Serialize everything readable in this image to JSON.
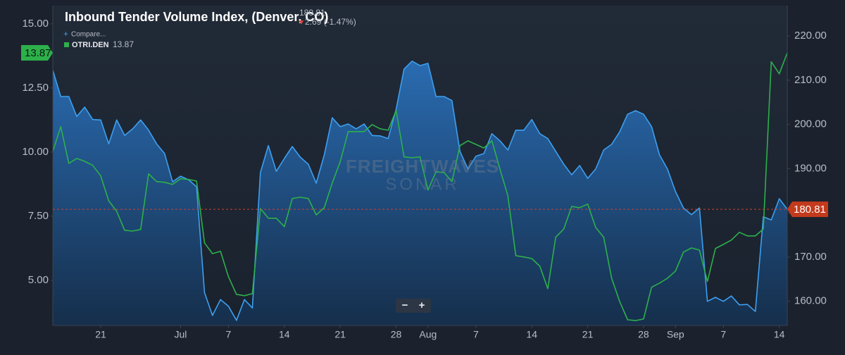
{
  "chart_data": {
    "type": "line",
    "title": "Inbound Tender Volume Index, (Denver, CO)",
    "current_value": 180.81,
    "change": "2.69 (-1.47%)",
    "compare": "Compare...",
    "watermark": [
      "FREIGHTWAVES",
      "SONAR"
    ],
    "zoom": [
      "−",
      "+"
    ],
    "categories": [
      null,
      null,
      null,
      null,
      null,
      null,
      "21",
      null,
      null,
      null,
      null,
      null,
      null,
      null,
      null,
      null,
      "Jul",
      null,
      null,
      null,
      null,
      null,
      "7",
      null,
      null,
      null,
      null,
      null,
      null,
      "14",
      null,
      null,
      null,
      null,
      null,
      null,
      "21",
      null,
      null,
      null,
      null,
      null,
      null,
      "28",
      null,
      null,
      null,
      "Aug",
      null,
      null,
      null,
      null,
      null,
      "7",
      null,
      null,
      null,
      null,
      null,
      null,
      "14",
      null,
      null,
      null,
      null,
      null,
      null,
      "21",
      null,
      null,
      null,
      null,
      null,
      null,
      "28",
      null,
      null,
      null,
      "Sep",
      null,
      null,
      null,
      null,
      null,
      "7",
      null,
      null,
      null,
      null,
      null,
      null,
      "14",
      null
    ],
    "series": [
      {
        "color": "#3d9ff0",
        "axis": "y2",
        "fill": true,
        "values": [
          212.2,
          206.3,
          206.3,
          201.8,
          203.9,
          201.1,
          201,
          195.6,
          201,
          197.5,
          199,
          201,
          198.7,
          195.6,
          193.4,
          187,
          188.3,
          187.5,
          185.9,
          162,
          156.8,
          160.4,
          158.9,
          155.7,
          160.4,
          158.5,
          189.1,
          195.2,
          189.4,
          192.3,
          195,
          192.6,
          191,
          186.7,
          193.1,
          201.5,
          199.5,
          200.1,
          199,
          200.1,
          197.5,
          197.4,
          196.8,
          203.4,
          212.5,
          214.3,
          213.3,
          213.8,
          206.3,
          206.3,
          205.4,
          193.9,
          189.9,
          192.8,
          193.4,
          197.9,
          196.3,
          194.2,
          198.7,
          198.7,
          201.1,
          197.9,
          196.8,
          193.9,
          191,
          188.6,
          190.7,
          187.8,
          189.9,
          194.2,
          195.5,
          198.3,
          202.3,
          203.1,
          202.3,
          199.5,
          193.1,
          189.9,
          184.8,
          181.1,
          179.6,
          181.1,
          160,
          160.9,
          160,
          161.2,
          159.2,
          159.3,
          157.7,
          179.1,
          178.4,
          183.2,
          180.81
        ]
      },
      {
        "name": "OTRI.DEN",
        "color": "#2db04b",
        "axis": "y",
        "last": 13.87,
        "values": [
          10.03,
          10.99,
          9.56,
          9.75,
          9.64,
          9.48,
          9.07,
          8.1,
          7.69,
          6.95,
          6.92,
          6.98,
          9.15,
          8.85,
          8.82,
          8.74,
          8.96,
          8.93,
          8.87,
          6.46,
          6.04,
          6.13,
          5.14,
          4.45,
          4.4,
          4.48,
          7.8,
          7.42,
          7.42,
          7.09,
          8.19,
          8.24,
          8.19,
          7.55,
          7.83,
          8.79,
          9.62,
          10.8,
          10.8,
          10.8,
          11.07,
          10.91,
          10.85,
          11.62,
          9.81,
          9.78,
          9.81,
          8.52,
          9.23,
          9.2,
          8.85,
          10.25,
          10.44,
          10.3,
          10.16,
          10.44,
          9.34,
          8.3,
          5.96,
          5.91,
          5.85,
          5.55,
          4.67,
          6.68,
          7,
          7.88,
          7.83,
          7.97,
          7.06,
          6.68,
          5.08,
          4.18,
          3.46,
          3.43,
          3.49,
          4.73,
          4.89,
          5.08,
          5.36,
          6.1,
          6.26,
          6.18,
          4.95,
          6.24,
          6.4,
          6.57,
          6.87,
          6.73,
          6.73,
          7,
          13.52,
          13.05,
          13.87
        ]
      }
    ],
    "ylim": [
      3.24,
      15.71
    ],
    "yticks": [
      {
        "value": 5,
        "label": "5.00"
      },
      {
        "value": 7.5,
        "label": "7.50"
      },
      {
        "value": 10,
        "label": "10.00"
      },
      {
        "value": 12.5,
        "label": "12.50"
      },
      {
        "value": 15,
        "label": "15.00"
      }
    ],
    "y2lim": [
      154.55,
      226.85
    ],
    "y2ticks": [
      {
        "value": 160,
        "label": "160.00"
      },
      {
        "value": 170,
        "label": "170.00"
      },
      {
        "value": 180,
        "label": "180.00"
      },
      {
        "value": 190,
        "label": "190.00"
      },
      {
        "value": 200,
        "label": "200.00"
      },
      {
        "value": 210,
        "label": "210.00"
      },
      {
        "value": 220,
        "label": "220.00"
      }
    ],
    "grid": false
  }
}
